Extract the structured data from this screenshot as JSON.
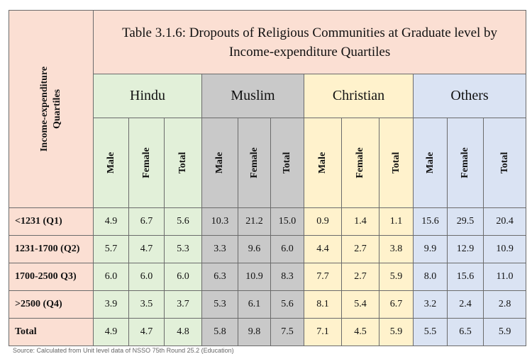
{
  "table": {
    "title_line1": "Table 3.1.6: Dropouts of Religious Communities at Graduate level by",
    "title_line2": "Income-expenditure Quartiles",
    "corner_line1": "Income-expenditure",
    "corner_line2": "Quartiles",
    "groups": [
      "Hindu",
      "Muslim",
      "Christian",
      "Others"
    ],
    "subheaders": [
      "Male",
      "Female",
      "Total"
    ],
    "rows": [
      {
        "label": "<1231 (Q1)",
        "values": [
          "4.9",
          "6.7",
          "5.6",
          "10.3",
          "21.2",
          "15.0",
          "0.9",
          "1.4",
          "1.1",
          "15.6",
          "29.5",
          "20.4"
        ]
      },
      {
        "label": "1231-1700 (Q2)",
        "values": [
          "5.7",
          "4.7",
          "5.3",
          "3.3",
          "9.6",
          "6.0",
          "4.4",
          "2.7",
          "3.8",
          "9.9",
          "12.9",
          "10.9"
        ]
      },
      {
        "label": "1700-2500 Q3)",
        "values": [
          "6.0",
          "6.0",
          "6.0",
          "6.3",
          "10.9",
          "8.3",
          "7.7",
          "2.7",
          "5.9",
          "8.0",
          "15.6",
          "11.0"
        ]
      },
      {
        "label": ">2500 (Q4)",
        "values": [
          "3.9",
          "3.5",
          "3.7",
          "5.3",
          "6.1",
          "5.6",
          "8.1",
          "5.4",
          "6.7",
          "3.2",
          "2.4",
          "2.8"
        ]
      },
      {
        "label": "Total",
        "values": [
          "4.9",
          "4.7",
          "4.8",
          "5.8",
          "9.8",
          "7.5",
          "7.1",
          "4.5",
          "5.9",
          "5.5",
          "6.5",
          "5.9"
        ]
      }
    ],
    "colors": {
      "header_peach": "#fbdfd3",
      "hindu": "#e2f0d9",
      "muslim": "#c9c9c9",
      "christian": "#fff2cc",
      "others": "#dae3f3"
    }
  },
  "source_note": "Source: Calculated from Unit level data of NSSO 75th Round 25.2 (Education)"
}
